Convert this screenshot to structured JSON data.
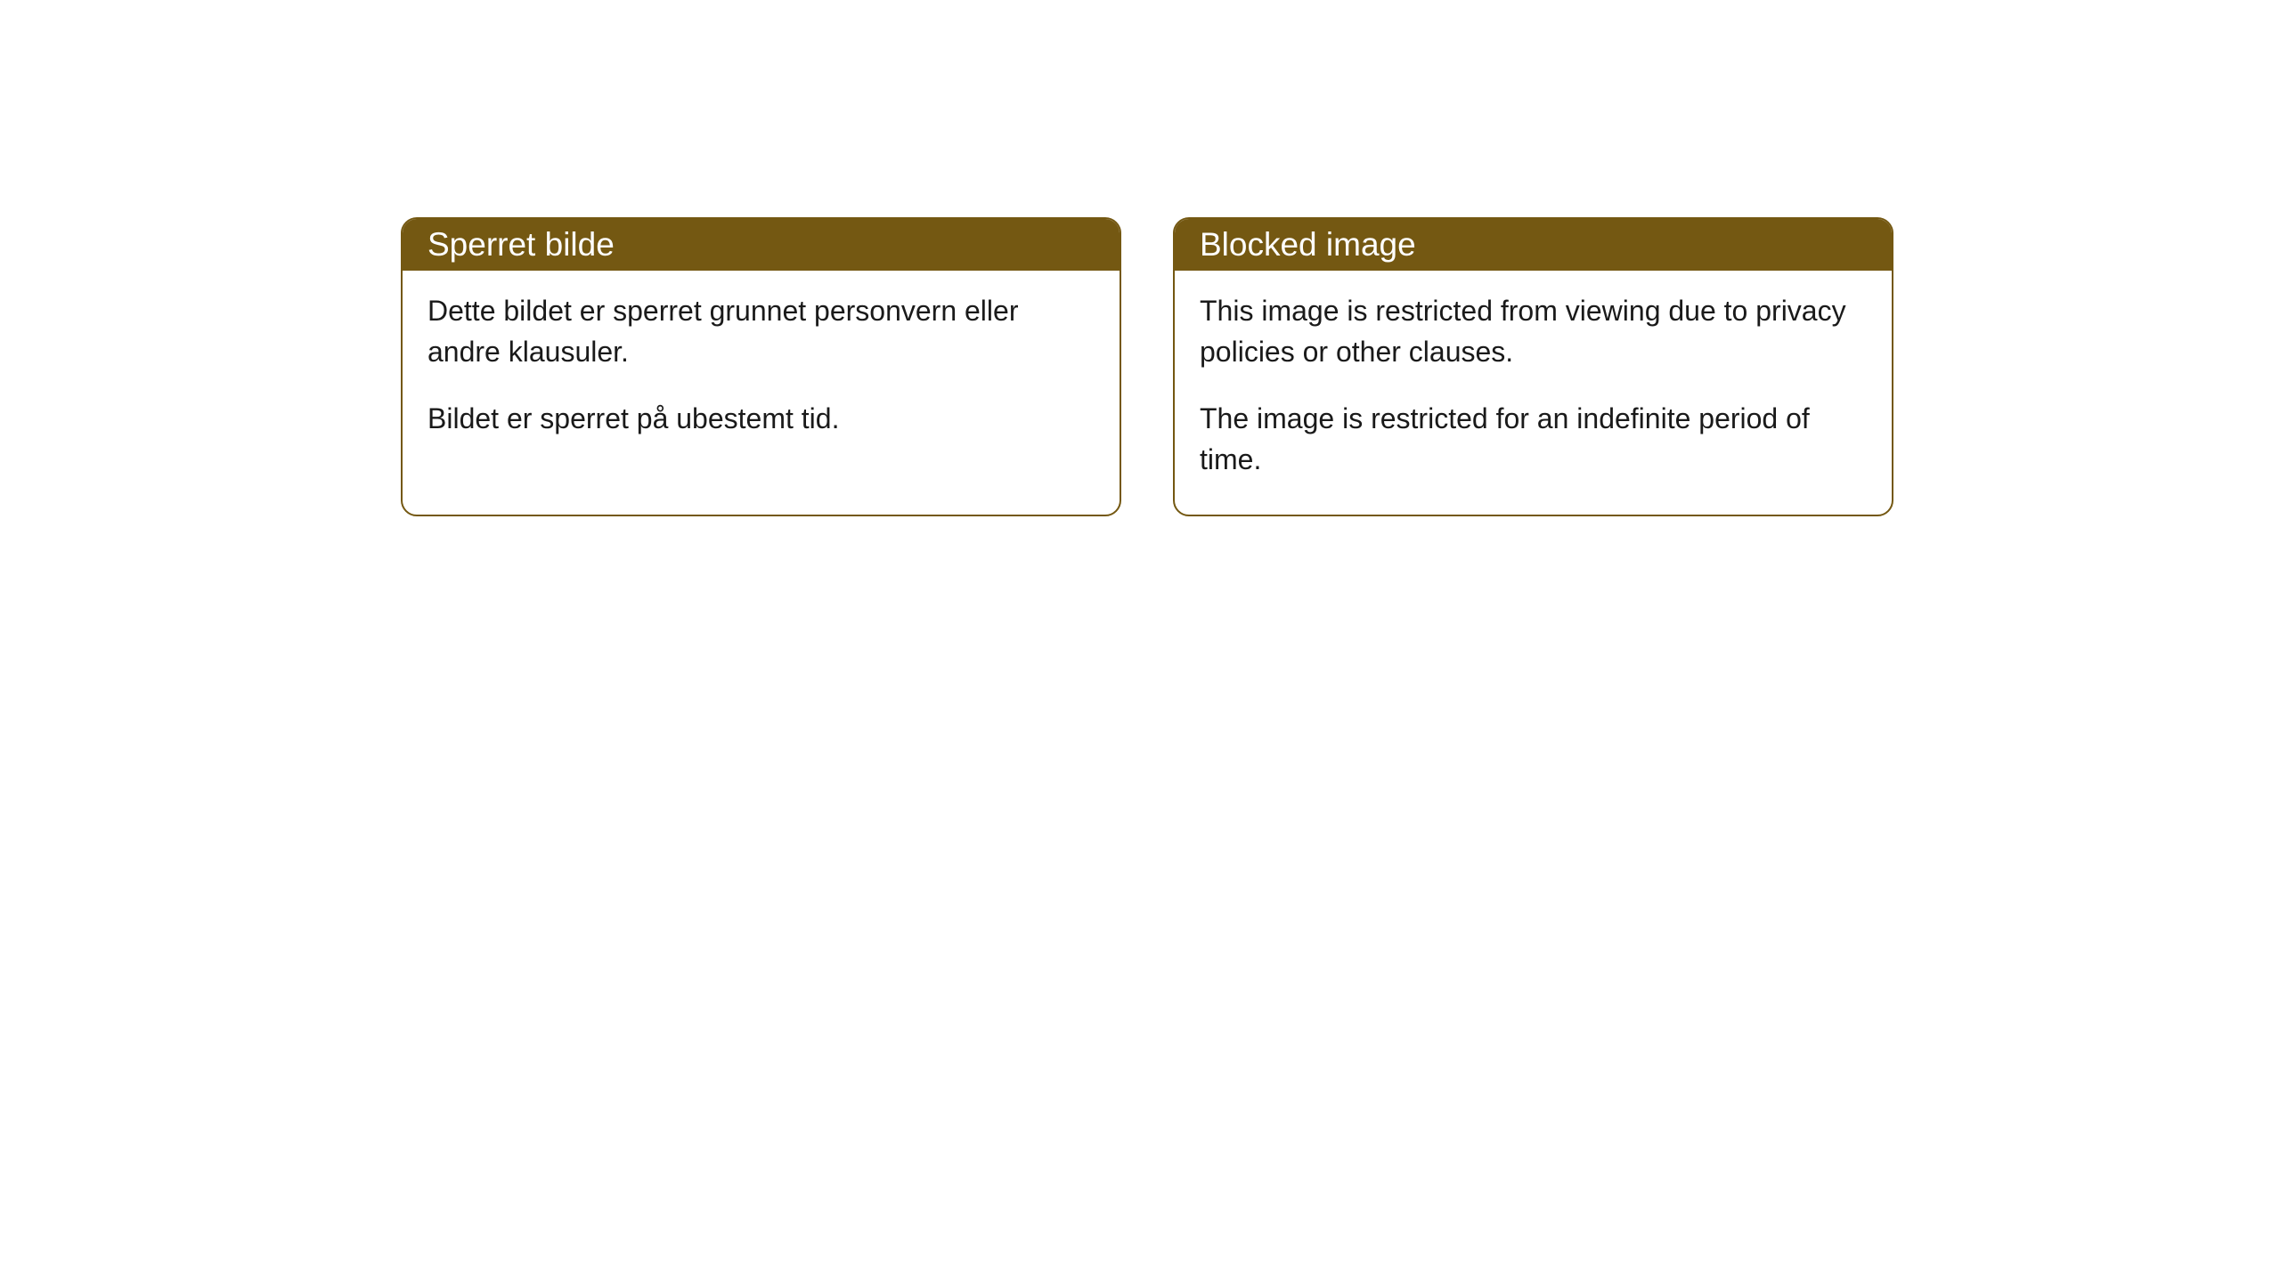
{
  "cards": [
    {
      "title": "Sperret bilde",
      "paragraph1": "Dette bildet er sperret grunnet personvern eller andre klausuler.",
      "paragraph2": "Bildet er sperret på ubestemt tid."
    },
    {
      "title": "Blocked image",
      "paragraph1": "This image is restricted from viewing due to privacy policies or other clauses.",
      "paragraph2": "The image is restricted for an indefinite period of time."
    }
  ],
  "style": {
    "header_bg_color": "#745812",
    "header_text_color": "#ffffff",
    "border_color": "#745812",
    "body_bg_color": "#ffffff",
    "body_text_color": "#1a1a1a",
    "border_radius": 18,
    "title_fontsize": 37,
    "body_fontsize": 32
  }
}
